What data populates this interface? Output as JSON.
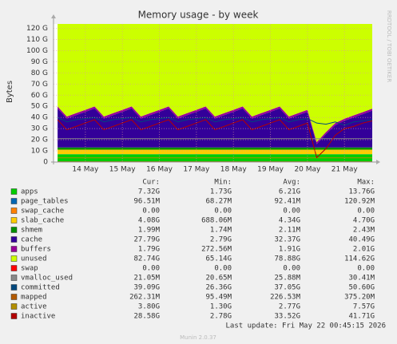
{
  "chart_data": {
    "type": "area",
    "title": "Memory usage - by week",
    "y_label": "Bytes",
    "side_text": "RRDTOOL / TOBI OETIKER",
    "grid": true,
    "xlim": [
      13.14,
      21.75
    ],
    "ylim": [
      0,
      124
    ],
    "xticks": [
      {
        "value": 14,
        "label": "14 May"
      },
      {
        "value": 15,
        "label": "15 May"
      },
      {
        "value": 16,
        "label": "16 May"
      },
      {
        "value": 17,
        "label": "17 May"
      },
      {
        "value": 18,
        "label": "18 May"
      },
      {
        "value": 19,
        "label": "19 May"
      },
      {
        "value": 20,
        "label": "20 May"
      },
      {
        "value": 21,
        "label": "21 May"
      }
    ],
    "yticks": [
      0,
      {
        "value": 10,
        "label": "10 G"
      },
      {
        "value": 20,
        "label": "20 G"
      },
      {
        "value": 30,
        "label": "30 G"
      },
      {
        "value": 40,
        "label": "40 G"
      },
      {
        "value": 50,
        "label": "50 G"
      },
      {
        "value": 60,
        "label": "60 G"
      },
      {
        "value": 70,
        "label": "70 G"
      },
      {
        "value": 80,
        "label": "80 G"
      },
      {
        "value": 90,
        "label": "90 G"
      },
      {
        "value": 100,
        "label": "100 G"
      },
      {
        "value": 110,
        "label": "110 G"
      },
      {
        "value": 120,
        "label": "120 G"
      }
    ],
    "x": [
      13.25,
      13.5,
      13.75,
      14,
      14.25,
      14.5,
      14.75,
      15,
      15.25,
      15.5,
      15.75,
      16,
      16.25,
      16.5,
      16.75,
      17,
      17.25,
      17.5,
      17.75,
      18,
      18.25,
      18.5,
      18.75,
      19,
      19.25,
      19.5,
      19.75,
      20,
      20.25,
      20.5,
      20.75,
      21,
      21.25,
      21.5,
      21.75
    ],
    "stats_header": [
      "Cur:",
      "Min:",
      "Avg:",
      "Max:"
    ],
    "series": [
      {
        "name": "apps",
        "style": "area",
        "color": "#00cc00",
        "stats": [
          "7.32G",
          "1.73G",
          "6.21G",
          "13.76G"
        ],
        "values": [
          7,
          7,
          7,
          7,
          7,
          7,
          7,
          7,
          7,
          7,
          7,
          7,
          7,
          7,
          7,
          7,
          7,
          7,
          7,
          7,
          7,
          7,
          7,
          7,
          7,
          7,
          7,
          7,
          7,
          7,
          7,
          7,
          7,
          7,
          7
        ]
      },
      {
        "name": "page_tables",
        "style": "area",
        "color": "#0066b3",
        "stats": [
          "96.51M",
          "68.27M",
          "92.41M",
          "120.92M"
        ],
        "values": [
          0.1,
          0.1,
          0.1,
          0.1,
          0.1,
          0.1,
          0.1,
          0.1,
          0.1,
          0.1,
          0.1,
          0.1,
          0.1,
          0.1,
          0.1,
          0.1,
          0.1,
          0.1,
          0.1,
          0.1,
          0.1,
          0.1,
          0.1,
          0.1,
          0.1,
          0.1,
          0.1,
          0.1,
          0.1,
          0.1,
          0.1,
          0.1,
          0.1,
          0.1,
          0.1
        ]
      },
      {
        "name": "swap_cache",
        "style": "area",
        "color": "#ff8000",
        "stats": [
          "0.00",
          "0.00",
          "0.00",
          "0.00"
        ],
        "values": [
          0,
          0,
          0,
          0,
          0,
          0,
          0,
          0,
          0,
          0,
          0,
          0,
          0,
          0,
          0,
          0,
          0,
          0,
          0,
          0,
          0,
          0,
          0,
          0,
          0,
          0,
          0,
          0,
          0,
          0,
          0,
          0,
          0,
          0,
          0
        ]
      },
      {
        "name": "slab_cache",
        "style": "area",
        "color": "#ffcc00",
        "stats": [
          "4.08G",
          "688.06M",
          "4.34G",
          "4.70G"
        ],
        "values": [
          4,
          4,
          4,
          4,
          4,
          4,
          4,
          4,
          4,
          4,
          4,
          4,
          4,
          4,
          4,
          4,
          4,
          4,
          4,
          4,
          4,
          4,
          4,
          4,
          4,
          4,
          4,
          4,
          4,
          4,
          4,
          4,
          4,
          4,
          4
        ]
      },
      {
        "name": "shmem",
        "style": "area",
        "color": "#008f00",
        "stats": [
          "1.99M",
          "1.74M",
          "2.11M",
          "2.43M"
        ],
        "values": [
          2,
          2,
          2,
          2,
          2,
          2,
          2,
          2,
          2,
          2,
          2,
          2,
          2,
          2,
          2,
          2,
          2,
          2,
          2,
          2,
          2,
          2,
          2,
          2,
          2,
          2,
          2,
          2,
          2,
          2,
          2,
          2,
          2,
          2,
          2
        ]
      },
      {
        "name": "cache",
        "style": "area",
        "color": "#330099",
        "stats": [
          "27.79G",
          "2.79G",
          "32.37G",
          "40.49G"
        ],
        "values": [
          35,
          26,
          29,
          32,
          35,
          26,
          29,
          32,
          35,
          26,
          29,
          32,
          35,
          26,
          29,
          32,
          35,
          26,
          29,
          32,
          35,
          26,
          29,
          32,
          35,
          26,
          29,
          32,
          3,
          12,
          20,
          24,
          27,
          30,
          33
        ]
      },
      {
        "name": "buffers",
        "style": "area",
        "color": "#990099",
        "stats": [
          "1.79G",
          "272.56M",
          "1.91G",
          "2.01G"
        ],
        "values": [
          1.8,
          1.8,
          1.8,
          1.8,
          1.8,
          1.8,
          1.8,
          1.8,
          1.8,
          1.8,
          1.8,
          1.8,
          1.8,
          1.8,
          1.8,
          1.8,
          1.8,
          1.8,
          1.8,
          1.8,
          1.8,
          1.8,
          1.8,
          1.8,
          1.8,
          1.8,
          1.8,
          1.8,
          1.8,
          1.8,
          1.8,
          1.8,
          1.8,
          1.8,
          1.8
        ]
      },
      {
        "name": "unused",
        "style": "area",
        "color": "#ccff00",
        "stats": [
          "82.74G",
          "65.14G",
          "78.88G",
          "114.62G"
        ],
        "values": [
          74.1,
          83.1,
          80.1,
          77.1,
          74.1,
          83.1,
          80.1,
          77.1,
          74.1,
          83.1,
          80.1,
          77.1,
          74.1,
          83.1,
          80.1,
          77.1,
          74.1,
          83.1,
          80.1,
          77.1,
          74.1,
          83.1,
          80.1,
          77.1,
          74.1,
          83.1,
          80.1,
          77.1,
          106.1,
          97.1,
          89.1,
          85.1,
          82.1,
          79.1,
          76.1
        ]
      },
      {
        "name": "swap",
        "style": "line",
        "color": "#ff0000",
        "stats": [
          "0.00",
          "0.00",
          "0.00",
          "0.00"
        ],
        "values": [
          0,
          0,
          0,
          0,
          0,
          0,
          0,
          0,
          0,
          0,
          0,
          0,
          0,
          0,
          0,
          0,
          0,
          0,
          0,
          0,
          0,
          0,
          0,
          0,
          0,
          0,
          0,
          0,
          0,
          0,
          0,
          0,
          0,
          0,
          0
        ]
      },
      {
        "name": "vmalloc_used",
        "style": "line",
        "color": "#888888",
        "stats": [
          "21.05M",
          "20.65M",
          "25.88M",
          "30.41M"
        ],
        "values": [
          21,
          21,
          21,
          21,
          21,
          21,
          21,
          21,
          21,
          21,
          21,
          21,
          21,
          21,
          21,
          21,
          21,
          21,
          21,
          21,
          21,
          21,
          21,
          21,
          21,
          21,
          21,
          21,
          21,
          21,
          21,
          21,
          21,
          21,
          21
        ]
      },
      {
        "name": "committed",
        "style": "line",
        "color": "#00487d",
        "stats": [
          "39.09G",
          "26.36G",
          "37.05G",
          "50.60G"
        ],
        "values": [
          40,
          36,
          38,
          39,
          40,
          36,
          38,
          39,
          40,
          36,
          38,
          39,
          40,
          36,
          38,
          39,
          40,
          36,
          38,
          39,
          40,
          36,
          38,
          39,
          40,
          36,
          38,
          39,
          35,
          34,
          36,
          33,
          36,
          37,
          38
        ]
      },
      {
        "name": "mapped",
        "style": "line",
        "color": "#b35a00",
        "stats": [
          "262.31M",
          "95.49M",
          "226.53M",
          "375.20M"
        ],
        "values": [
          0.26,
          0.26,
          0.26,
          0.26,
          0.26,
          0.26,
          0.26,
          0.26,
          0.26,
          0.26,
          0.26,
          0.26,
          0.26,
          0.26,
          0.26,
          0.26,
          0.26,
          0.26,
          0.26,
          0.26,
          0.26,
          0.26,
          0.26,
          0.26,
          0.26,
          0.26,
          0.26,
          0.26,
          0.26,
          0.26,
          0.26,
          0.26,
          0.26,
          0.26,
          0.26
        ]
      },
      {
        "name": "active",
        "style": "line",
        "color": "#b38f00",
        "stats": [
          "3.80G",
          "1.30G",
          "2.77G",
          "7.57G"
        ],
        "values": [
          3.8,
          3.8,
          3.8,
          3.8,
          3.8,
          3.8,
          3.8,
          3.8,
          3.8,
          3.8,
          3.8,
          3.8,
          3.8,
          3.8,
          3.8,
          3.8,
          3.8,
          3.8,
          3.8,
          3.8,
          3.8,
          3.8,
          3.8,
          3.8,
          3.8,
          3.8,
          3.8,
          3.8,
          3.8,
          3.8,
          3.8,
          3.8,
          3.8,
          3.8,
          3.8
        ]
      },
      {
        "name": "inactive",
        "style": "line",
        "color": "#b30000",
        "stats": [
          "28.58G",
          "2.78G",
          "33.52G",
          "41.71G"
        ],
        "values": [
          38,
          29,
          32,
          35,
          38,
          29,
          32,
          35,
          38,
          29,
          32,
          35,
          38,
          29,
          32,
          35,
          38,
          29,
          32,
          35,
          38,
          29,
          32,
          35,
          38,
          29,
          32,
          35,
          4,
          12,
          24,
          30,
          32,
          35,
          37
        ]
      }
    ],
    "last_update": "Last update: Fri May 22 00:45:15 2026",
    "footer": "Munin 2.0.37"
  }
}
